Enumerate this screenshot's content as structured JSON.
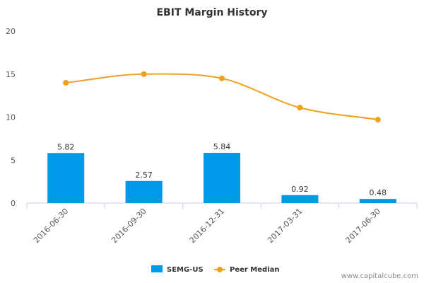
{
  "chart_data": {
    "type": "bar",
    "title": "EBIT Margin History",
    "categories": [
      "2016-06-30",
      "2016-09-30",
      "2016-12-31",
      "2017-03-31",
      "2017-06-30"
    ],
    "series": [
      {
        "name": "SEMG-US",
        "type": "bar",
        "color": "#0098e8",
        "values": [
          5.82,
          2.57,
          5.84,
          0.92,
          0.48
        ],
        "labels": [
          "5.82",
          "2.57",
          "5.84",
          "0.92",
          "0.48"
        ]
      },
      {
        "name": "Peer Median",
        "type": "line",
        "color": "#f0a01e",
        "values": [
          14.0,
          15.0,
          14.5,
          11.1,
          9.7
        ]
      }
    ],
    "y_ticks": [
      "0",
      "5",
      "10",
      "15",
      "20"
    ],
    "ylim": [
      0,
      20
    ],
    "grid": false,
    "legend": "bottom-center"
  },
  "footer": {
    "watermark": "www.capitalcube.com"
  }
}
